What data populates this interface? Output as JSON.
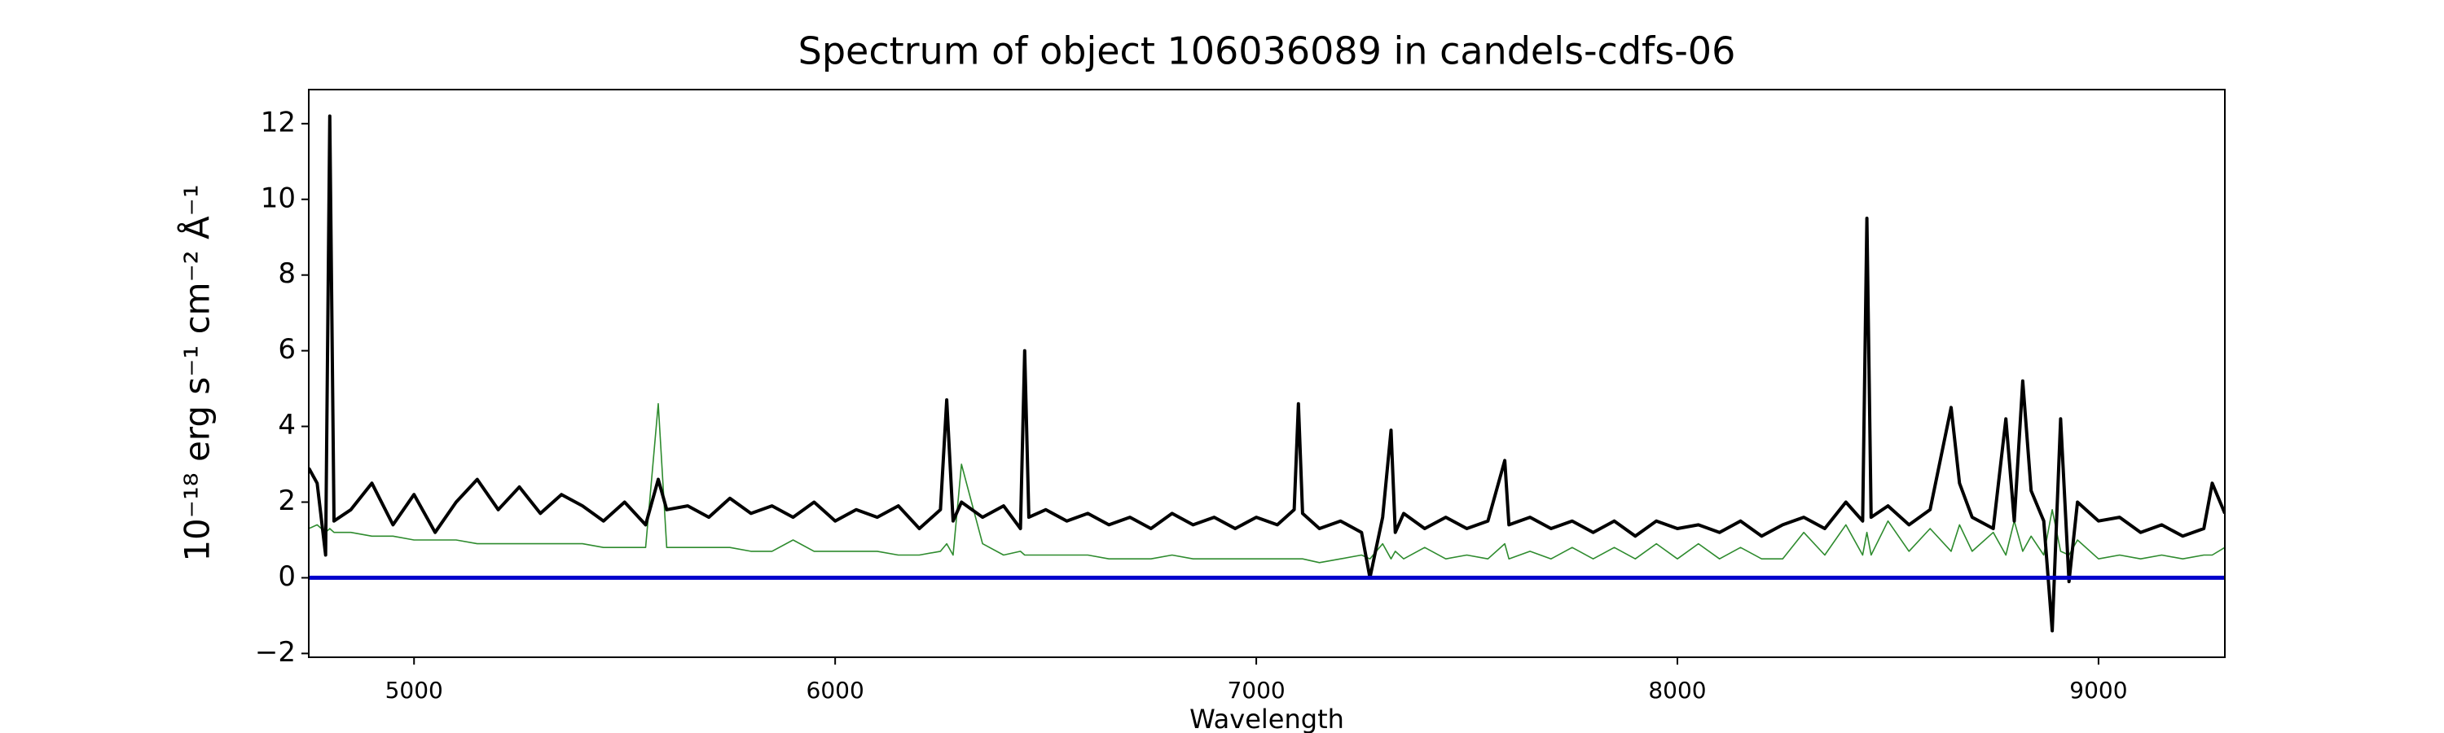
{
  "chart_data": {
    "type": "line",
    "title": "Spectrum of object 106036089 in candels-cdfs-06",
    "xlabel": "Wavelength",
    "ylabel": "10⁻¹⁸ erg s⁻¹ cm⁻² Å⁻¹",
    "x": [
      4750,
      4770,
      4790,
      4800,
      4810,
      4850,
      4900,
      4950,
      5000,
      5050,
      5100,
      5150,
      5200,
      5250,
      5300,
      5350,
      5400,
      5450,
      5500,
      5550,
      5580,
      5600,
      5650,
      5700,
      5750,
      5800,
      5850,
      5900,
      5950,
      6000,
      6050,
      6100,
      6150,
      6200,
      6250,
      6265,
      6280,
      6300,
      6350,
      6400,
      6440,
      6450,
      6460,
      6500,
      6550,
      6600,
      6650,
      6700,
      6750,
      6800,
      6850,
      6900,
      6950,
      7000,
      7050,
      7090,
      7100,
      7110,
      7150,
      7200,
      7250,
      7270,
      7300,
      7320,
      7330,
      7350,
      7400,
      7450,
      7500,
      7550,
      7590,
      7600,
      7650,
      7700,
      7750,
      7800,
      7850,
      7900,
      7950,
      8000,
      8050,
      8100,
      8150,
      8200,
      8250,
      8300,
      8350,
      8400,
      8440,
      8450,
      8460,
      8500,
      8550,
      8600,
      8650,
      8670,
      8700,
      8750,
      8780,
      8800,
      8820,
      8840,
      8870,
      8890,
      8910,
      8930,
      8950,
      9000,
      9050,
      9100,
      9150,
      9200,
      9250,
      9270,
      9300
    ],
    "series": [
      {
        "color": "#000000",
        "values": [
          2.9,
          2.5,
          0.6,
          12.2,
          1.5,
          1.8,
          2.5,
          1.4,
          2.2,
          1.2,
          2.0,
          2.6,
          1.8,
          2.4,
          1.7,
          2.2,
          1.9,
          1.5,
          2.0,
          1.4,
          2.6,
          1.8,
          1.9,
          1.6,
          2.1,
          1.7,
          1.9,
          1.6,
          2.0,
          1.5,
          1.8,
          1.6,
          1.9,
          1.3,
          1.8,
          4.7,
          1.5,
          2.0,
          1.6,
          1.9,
          1.3,
          6.0,
          1.6,
          1.8,
          1.5,
          1.7,
          1.4,
          1.6,
          1.3,
          1.7,
          1.4,
          1.6,
          1.3,
          1.6,
          1.4,
          1.8,
          4.6,
          1.7,
          1.3,
          1.5,
          1.2,
          0.0,
          1.6,
          3.9,
          1.2,
          1.7,
          1.3,
          1.6,
          1.3,
          1.5,
          3.1,
          1.4,
          1.6,
          1.3,
          1.5,
          1.2,
          1.5,
          1.1,
          1.5,
          1.3,
          1.4,
          1.2,
          1.5,
          1.1,
          1.4,
          1.6,
          1.3,
          2.0,
          1.5,
          9.5,
          1.6,
          1.9,
          1.4,
          1.8,
          4.5,
          2.5,
          1.6,
          1.3,
          4.2,
          1.5,
          5.2,
          2.3,
          1.5,
          -1.4,
          4.2,
          -0.1,
          2.0,
          1.5,
          1.6,
          1.2,
          1.4,
          1.1,
          1.3,
          2.5,
          1.7
        ]
      },
      {
        "color": "#2e8b2e",
        "values": [
          1.3,
          1.4,
          1.2,
          1.3,
          1.2,
          1.2,
          1.1,
          1.1,
          1.0,
          1.0,
          1.0,
          0.9,
          0.9,
          0.9,
          0.9,
          0.9,
          0.9,
          0.8,
          0.8,
          0.8,
          4.6,
          0.8,
          0.8,
          0.8,
          0.8,
          0.7,
          0.7,
          1.0,
          0.7,
          0.7,
          0.7,
          0.7,
          0.6,
          0.6,
          0.7,
          0.9,
          0.6,
          3.0,
          0.9,
          0.6,
          0.7,
          0.6,
          0.6,
          0.6,
          0.6,
          0.6,
          0.5,
          0.5,
          0.5,
          0.6,
          0.5,
          0.5,
          0.5,
          0.5,
          0.5,
          0.5,
          0.5,
          0.5,
          0.4,
          0.5,
          0.6,
          0.5,
          0.9,
          0.5,
          0.7,
          0.5,
          0.8,
          0.5,
          0.6,
          0.5,
          0.9,
          0.5,
          0.7,
          0.5,
          0.8,
          0.5,
          0.8,
          0.5,
          0.9,
          0.5,
          0.9,
          0.5,
          0.8,
          0.5,
          0.5,
          1.2,
          0.6,
          1.4,
          0.6,
          1.2,
          0.6,
          1.5,
          0.7,
          1.3,
          0.7,
          1.4,
          0.7,
          1.2,
          0.6,
          1.5,
          0.7,
          1.1,
          0.6,
          1.8,
          0.7,
          0.6,
          1.0,
          0.5,
          0.6,
          0.5,
          0.6,
          0.5,
          0.6,
          0.6,
          0.8
        ]
      }
    ],
    "hlines": [
      {
        "value": 0,
        "color": "#0000cc"
      }
    ],
    "xlim": [
      4750,
      9300
    ],
    "ylim": [
      -2.1,
      12.9
    ],
    "xticks": [
      5000,
      6000,
      7000,
      8000,
      9000
    ],
    "yticks": [
      {
        "value": -2,
        "label": "−2"
      },
      0,
      2,
      4,
      6,
      8,
      10,
      12
    ]
  }
}
